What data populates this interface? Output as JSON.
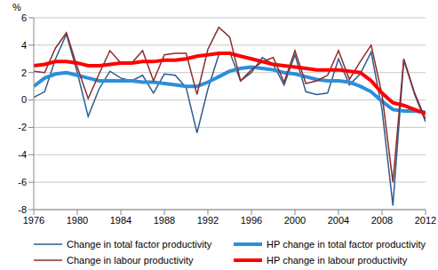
{
  "chart_data": {
    "type": "line",
    "y_label": "%",
    "x": [
      1976,
      1977,
      1978,
      1979,
      1980,
      1981,
      1982,
      1983,
      1984,
      1985,
      1986,
      1987,
      1988,
      1989,
      1990,
      1991,
      1992,
      1993,
      1994,
      1995,
      1996,
      1997,
      1998,
      1999,
      2000,
      2001,
      2002,
      2003,
      2004,
      2005,
      2006,
      2007,
      2008,
      2009,
      2010,
      2011,
      2012
    ],
    "xlim": [
      1976,
      2012
    ],
    "xticks": [
      1976,
      1980,
      1984,
      1988,
      1992,
      1996,
      2000,
      2004,
      2008,
      2012
    ],
    "ylim": [
      -8,
      6
    ],
    "yticks": [
      -8,
      -6,
      -4,
      -2,
      0,
      2,
      4,
      6
    ],
    "grid": true,
    "legend": "bottom",
    "series": [
      {
        "name": "Change in total factor productivity",
        "color": "#2b5d8f",
        "line_style": "thin",
        "values": [
          0.2,
          0.6,
          3.0,
          4.8,
          2.0,
          -1.2,
          0.8,
          2.1,
          1.6,
          1.4,
          1.8,
          0.5,
          1.9,
          1.8,
          0.9,
          -2.4,
          0.8,
          3.3,
          3.5,
          1.4,
          2.0,
          3.1,
          2.6,
          1.1,
          3.3,
          0.6,
          0.4,
          0.5,
          3.0,
          1.1,
          1.9,
          3.5,
          -0.7,
          -7.7,
          2.9,
          0.4,
          -1.6
        ]
      },
      {
        "name": "HP change in total factor productivity",
        "color": "#2e8fd8",
        "line_style": "thick",
        "values": [
          1.0,
          1.6,
          1.9,
          2.0,
          1.8,
          1.6,
          1.4,
          1.4,
          1.4,
          1.4,
          1.3,
          1.3,
          1.2,
          1.1,
          1.0,
          1.0,
          1.3,
          1.7,
          2.1,
          2.3,
          2.4,
          2.3,
          2.2,
          2.0,
          1.9,
          1.7,
          1.5,
          1.4,
          1.4,
          1.3,
          1.0,
          0.6,
          -0.1,
          -0.7,
          -0.8,
          -0.8,
          -0.9
        ]
      },
      {
        "name": "Change in labour productivity",
        "color": "#8e2b2b",
        "line_style": "thin",
        "values": [
          2.1,
          2.0,
          3.8,
          4.9,
          2.4,
          0.1,
          1.9,
          3.6,
          2.7,
          2.7,
          3.6,
          1.4,
          3.3,
          3.4,
          3.4,
          0.4,
          3.7,
          5.3,
          4.6,
          1.4,
          2.2,
          2.8,
          3.1,
          1.3,
          3.6,
          1.2,
          1.4,
          1.8,
          3.6,
          1.5,
          2.8,
          4.0,
          0.4,
          -6.0,
          3.0,
          0.5,
          -1.4
        ]
      },
      {
        "name": "HP change in labour productivity",
        "color": "#ff0000",
        "line_style": "thick",
        "values": [
          2.5,
          2.6,
          2.8,
          2.8,
          2.7,
          2.5,
          2.5,
          2.6,
          2.7,
          2.7,
          2.8,
          2.8,
          2.9,
          2.9,
          3.0,
          3.2,
          3.3,
          3.4,
          3.4,
          3.2,
          3.0,
          2.8,
          2.6,
          2.5,
          2.4,
          2.3,
          2.2,
          2.2,
          2.2,
          2.1,
          2.0,
          1.4,
          0.5,
          -0.2,
          -0.4,
          -0.7,
          -1.0
        ]
      }
    ]
  }
}
